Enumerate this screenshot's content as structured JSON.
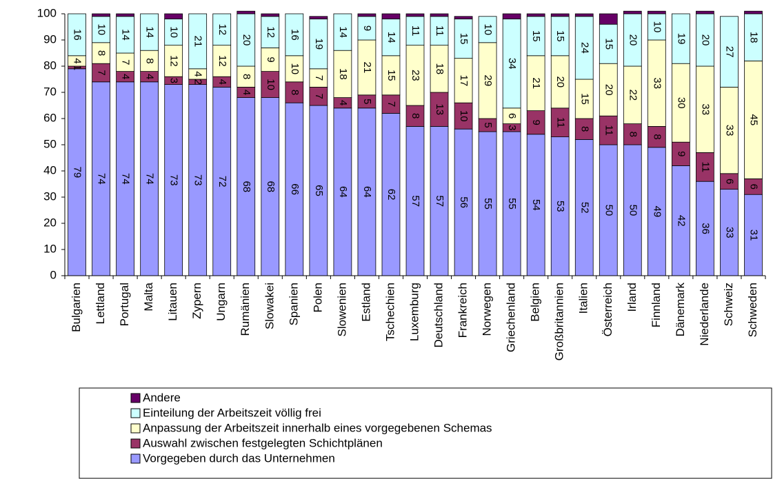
{
  "chart_data": {
    "type": "stacked-bar",
    "categories": [
      "Bulgarien",
      "Lettland",
      "Portugal",
      "Malta",
      "Litauen",
      "Zypern",
      "Ungarn",
      "Rumänien",
      "Slowakei",
      "Spanien",
      "Polen",
      "Slowenien",
      "Estland",
      "Tschechien",
      "Luxemburg",
      "Deutschland",
      "Frankreich",
      "Norwegen",
      "Griechenland",
      "Belgien",
      "Großbritannien",
      "Italien",
      "Österreich",
      "Irland",
      "Finnland",
      "Dänemark",
      "Niederlande",
      "Schweiz",
      "Schweden"
    ],
    "series": [
      {
        "name": "Vorgegeben durch das Unternehmen",
        "color": "#9999ff",
        "values": [
          79,
          74,
          74,
          74,
          73,
          73,
          72,
          68,
          68,
          66,
          65,
          64,
          64,
          62,
          57,
          57,
          56,
          55,
          55,
          54,
          53,
          52,
          50,
          50,
          49,
          42,
          36,
          33,
          31
        ]
      },
      {
        "name": "Auswahl zwischen festgelegten Schichtplänen",
        "color": "#993366",
        "values": [
          1,
          7,
          4,
          4,
          3,
          2,
          4,
          4,
          10,
          8,
          7,
          4,
          5,
          7,
          8,
          13,
          10,
          5,
          3,
          9,
          11,
          8,
          11,
          8,
          8,
          9,
          11,
          6,
          6
        ]
      },
      {
        "name": "Anpassung der Arbeitszeit innerhalb eines vorgegebenen Schemas",
        "color": "#ffffcc",
        "values": [
          4,
          8,
          7,
          8,
          12,
          4,
          12,
          8,
          9,
          10,
          7,
          18,
          21,
          15,
          23,
          18,
          17,
          29,
          6,
          21,
          20,
          15,
          20,
          22,
          33,
          30,
          33,
          33,
          45
        ]
      },
      {
        "name": "Einteilung der Arbeitszeit völlig frei",
        "color": "#ccffff",
        "values": [
          16,
          10,
          14,
          14,
          10,
          21,
          12,
          20,
          12,
          16,
          19,
          14,
          9,
          14,
          11,
          11,
          15,
          10,
          34,
          15,
          15,
          24,
          15,
          20,
          10,
          19,
          20,
          27,
          18
        ]
      },
      {
        "name": "Andere",
        "color": "#660066",
        "values": [
          0,
          1,
          1,
          0,
          2,
          0,
          0,
          1,
          1,
          0,
          1,
          0,
          1,
          2,
          1,
          1,
          1,
          0,
          2,
          1,
          1,
          1,
          4,
          1,
          1,
          0,
          1,
          0,
          1
        ]
      }
    ],
    "labeled_series": [
      0,
      1,
      2,
      3
    ],
    "ylim": [
      0,
      100
    ],
    "yticks": [
      0,
      10,
      20,
      30,
      40,
      50,
      60,
      70,
      80,
      90,
      100
    ]
  }
}
